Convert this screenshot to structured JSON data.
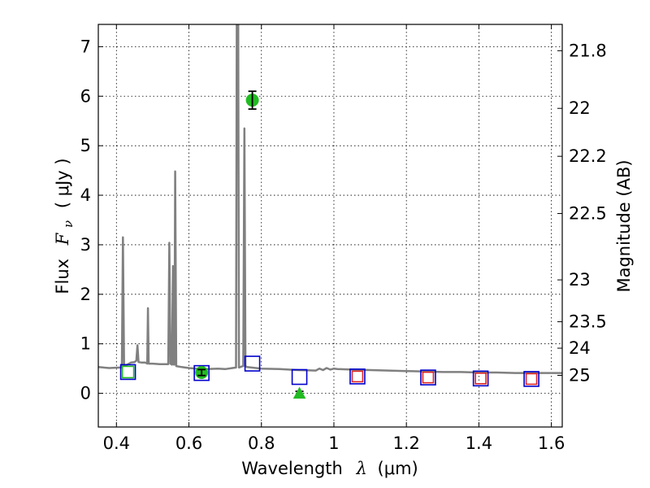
{
  "chart_data": {
    "type": "scatter",
    "title": "",
    "xlabel": "Wavelength  λ (μm)",
    "ylabel": "Flux  Fν  ( μJy )",
    "ylabel_parts": {
      "word": "Flux",
      "symbol": "F",
      "subscript": "ν",
      "unit": "( μJy )"
    },
    "xlabel_parts": {
      "word": "Wavelength",
      "symbol": "λ",
      "unit": "(μm)"
    },
    "y2label": "Magnitude (AB)",
    "xlim": [
      0.35,
      1.63
    ],
    "ylim": [
      -0.68,
      7.45
    ],
    "grid": true,
    "x_ticks": [
      {
        "value": 0.4,
        "label": "0.4"
      },
      {
        "value": 0.6,
        "label": "0.6"
      },
      {
        "value": 0.8,
        "label": "0.8"
      },
      {
        "value": 1.0,
        "label": "1"
      },
      {
        "value": 1.2,
        "label": "1.2"
      },
      {
        "value": 1.4,
        "label": "1.4"
      },
      {
        "value": 1.6,
        "label": "1.6"
      }
    ],
    "y_ticks": [
      {
        "value": 0,
        "label": "0"
      },
      {
        "value": 1,
        "label": "1"
      },
      {
        "value": 2,
        "label": "2"
      },
      {
        "value": 3,
        "label": "3"
      },
      {
        "value": 4,
        "label": "4"
      },
      {
        "value": 5,
        "label": "5"
      },
      {
        "value": 6,
        "label": "6"
      },
      {
        "value": 7,
        "label": "7"
      }
    ],
    "y2_ticks": [
      {
        "mag": 21.8,
        "label": "21.8"
      },
      {
        "mag": 22.0,
        "label": "22"
      },
      {
        "mag": 22.2,
        "label": "22.2"
      },
      {
        "mag": 22.5,
        "label": "22.5"
      },
      {
        "mag": 23.0,
        "label": "23"
      },
      {
        "mag": 23.5,
        "label": "23.5"
      },
      {
        "mag": 24.0,
        "label": "24"
      },
      {
        "mag": 25.0,
        "label": "25"
      }
    ],
    "colors": {
      "template": "#808080",
      "observed": "#22bb22",
      "model_blue": "#0000cc",
      "model_red": "#dd2222",
      "model_green": "#22bb22",
      "errorbar": "#000000"
    },
    "template_spectrum": [
      [
        0.35,
        0.53
      ],
      [
        0.38,
        0.51
      ],
      [
        0.41,
        0.52
      ],
      [
        0.415,
        0.52
      ],
      [
        0.418,
        3.15
      ],
      [
        0.421,
        0.56
      ],
      [
        0.43,
        0.58
      ],
      [
        0.44,
        0.62
      ],
      [
        0.45,
        0.63
      ],
      [
        0.455,
        0.66
      ],
      [
        0.458,
        0.97
      ],
      [
        0.461,
        0.63
      ],
      [
        0.47,
        0.62
      ],
      [
        0.48,
        0.62
      ],
      [
        0.485,
        0.6
      ],
      [
        0.487,
        1.72
      ],
      [
        0.489,
        0.6
      ],
      [
        0.5,
        0.6
      ],
      [
        0.52,
        0.59
      ],
      [
        0.54,
        0.59
      ],
      [
        0.543,
        0.59
      ],
      [
        0.546,
        3.04
      ],
      [
        0.549,
        0.6
      ],
      [
        0.553,
        0.58
      ],
      [
        0.556,
        2.57
      ],
      [
        0.558,
        0.58
      ],
      [
        0.56,
        0.58
      ],
      [
        0.562,
        4.48
      ],
      [
        0.565,
        0.55
      ],
      [
        0.58,
        0.53
      ],
      [
        0.6,
        0.51
      ],
      [
        0.62,
        0.5
      ],
      [
        0.65,
        0.49
      ],
      [
        0.68,
        0.5
      ],
      [
        0.7,
        0.49
      ],
      [
        0.72,
        0.51
      ],
      [
        0.73,
        0.52
      ],
      [
        0.732,
        7.45
      ],
      [
        0.736,
        7.45
      ],
      [
        0.738,
        0.52
      ],
      [
        0.745,
        0.54
      ],
      [
        0.75,
        0.55
      ],
      [
        0.753,
        5.35
      ],
      [
        0.756,
        0.55
      ],
      [
        0.76,
        0.53
      ],
      [
        0.8,
        0.5
      ],
      [
        0.85,
        0.49
      ],
      [
        0.9,
        0.47
      ],
      [
        0.95,
        0.46
      ],
      [
        0.96,
        0.5
      ],
      [
        0.97,
        0.47
      ],
      [
        0.98,
        0.51
      ],
      [
        0.99,
        0.48
      ],
      [
        1.0,
        0.5
      ],
      [
        1.01,
        0.49
      ],
      [
        1.05,
        0.48
      ],
      [
        1.1,
        0.47
      ],
      [
        1.15,
        0.46
      ],
      [
        1.2,
        0.45
      ],
      [
        1.25,
        0.44
      ],
      [
        1.3,
        0.43
      ],
      [
        1.35,
        0.43
      ],
      [
        1.4,
        0.42
      ],
      [
        1.45,
        0.42
      ],
      [
        1.5,
        0.41
      ],
      [
        1.55,
        0.41
      ],
      [
        1.6,
        0.41
      ],
      [
        1.63,
        0.41
      ]
    ],
    "observed_points": [
      {
        "x": 0.635,
        "y": 0.42,
        "err": 0.06,
        "marker": "circle"
      },
      {
        "x": 0.775,
        "y": 5.92,
        "err": 0.18,
        "marker": "circle"
      }
    ],
    "upper_limit_points": [
      {
        "x": 0.905,
        "y": 0.0,
        "err": 0.04,
        "marker": "triangle"
      }
    ],
    "model_blue_squares": [
      {
        "x": 0.432,
        "y": 0.43
      },
      {
        "x": 0.635,
        "y": 0.41
      },
      {
        "x": 0.775,
        "y": 0.6
      },
      {
        "x": 0.905,
        "y": 0.33
      },
      {
        "x": 1.065,
        "y": 0.34
      },
      {
        "x": 1.26,
        "y": 0.32
      },
      {
        "x": 1.405,
        "y": 0.3
      },
      {
        "x": 1.545,
        "y": 0.29
      }
    ],
    "model_red_squares": [
      {
        "x": 1.065,
        "y": 0.34
      },
      {
        "x": 1.26,
        "y": 0.32
      },
      {
        "x": 1.405,
        "y": 0.3
      },
      {
        "x": 1.545,
        "y": 0.29
      }
    ],
    "model_green_squares": [
      {
        "x": 0.432,
        "y": 0.43
      }
    ]
  }
}
